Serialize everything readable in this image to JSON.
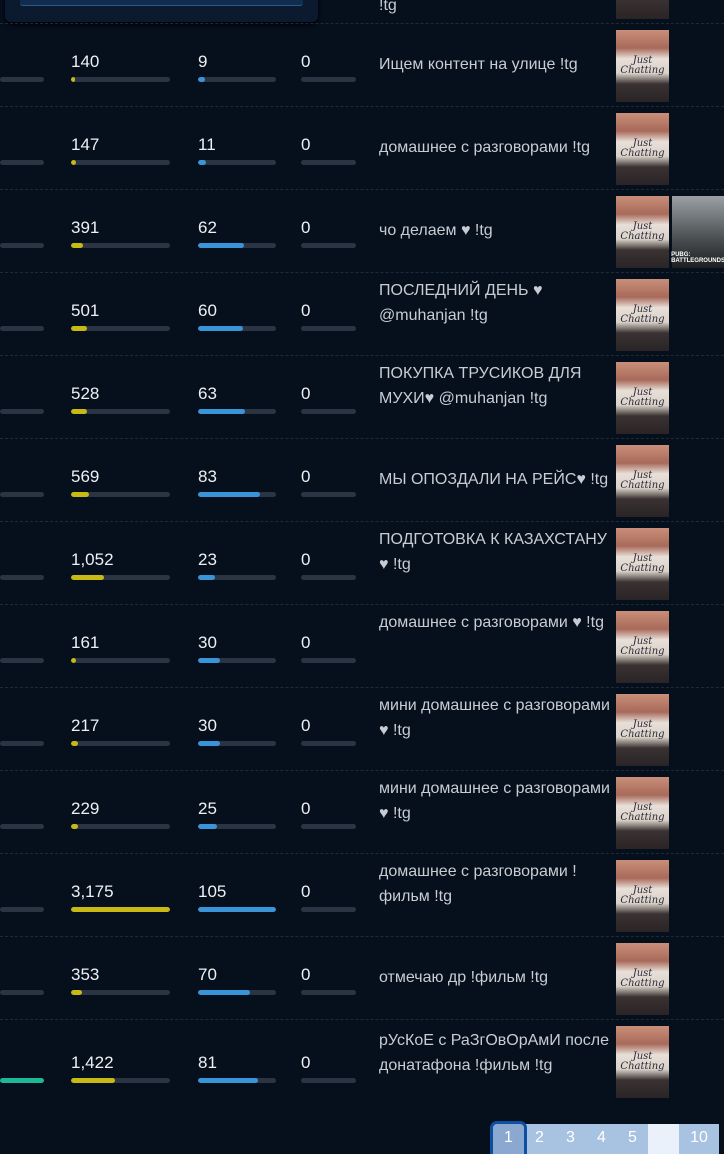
{
  "colors": {
    "views": "#c8b914",
    "chat": "#3a94d8",
    "teal": "#1fb896",
    "track": "#2a3442"
  },
  "top_row": {
    "title": "!tg"
  },
  "rows": [
    {
      "c1": "140",
      "c2": "9",
      "c3": "0",
      "c0_fill": 0,
      "title": "Ищем контент на улице !tg",
      "category": "Just Chatting"
    },
    {
      "c1": "147",
      "c2": "11",
      "c3": "0",
      "c0_fill": 0,
      "title": "домашнее с разговорами !tg",
      "category": "Just Chatting"
    },
    {
      "c1": "391",
      "c2": "62",
      "c3": "0",
      "c0_fill": 0,
      "title": "чо делаем ♥ !tg",
      "category": "Just Chatting",
      "category2": "PUBG: BATTLEGROUNDS"
    },
    {
      "c1": "501",
      "c2": "60",
      "c3": "0",
      "c0_fill": 0,
      "title": "ПОСЛЕДНИЙ ДЕНЬ ♥ @muhanjan !tg",
      "category": "Just Chatting"
    },
    {
      "c1": "528",
      "c2": "63",
      "c3": "0",
      "c0_fill": 0,
      "title": "ПОКУПКА ТРУСИКОВ ДЛЯ МУХИ♥ @muhanjan !tg",
      "category": "Just Chatting"
    },
    {
      "c1": "569",
      "c2": "83",
      "c3": "0",
      "c0_fill": 0,
      "title": "МЫ ОПОЗДАЛИ НА РЕЙС♥ !tg",
      "category": "Just Chatting"
    },
    {
      "c1": "1,052",
      "c2": "23",
      "c3": "0",
      "c0_fill": 0,
      "title": "ПОДГОТОВКА К КАЗАХСТАНУ ♥ !tg",
      "category": "Just Chatting"
    },
    {
      "c1": "161",
      "c2": "30",
      "c3": "0",
      "c0_fill": 0,
      "title": "домашнее с разговорами ♥ !tg",
      "category": "Just Chatting"
    },
    {
      "c1": "217",
      "c2": "30",
      "c3": "0",
      "c0_fill": 0,
      "title": "мини домашнее с разговорами ♥ !tg",
      "category": "Just Chatting"
    },
    {
      "c1": "229",
      "c2": "25",
      "c3": "0",
      "c0_fill": 0,
      "title": "мини домашнее с разговорами ♥ !tg",
      "category": "Just Chatting"
    },
    {
      "c1": "3,175",
      "c2": "105",
      "c3": "0",
      "c0_fill": 0,
      "title": "домашнее с разговорами ! фильм !tg",
      "category": "Just Chatting"
    },
    {
      "c1": "353",
      "c2": "70",
      "c3": "0",
      "c0_fill": 0,
      "title": "отмечаю др !фильм !tg",
      "category": "Just Chatting"
    },
    {
      "c1": "1,422",
      "c2": "81",
      "c3": "0",
      "c0_fill": 1,
      "title": "рУсКоЕ с РаЗгОвОрАмИ после донатафона !фильм !tg",
      "category": "Just Chatting"
    }
  ],
  "pagination": {
    "pages": [
      "1",
      "2",
      "3",
      "4",
      "5",
      "",
      "10"
    ],
    "active": "1"
  }
}
